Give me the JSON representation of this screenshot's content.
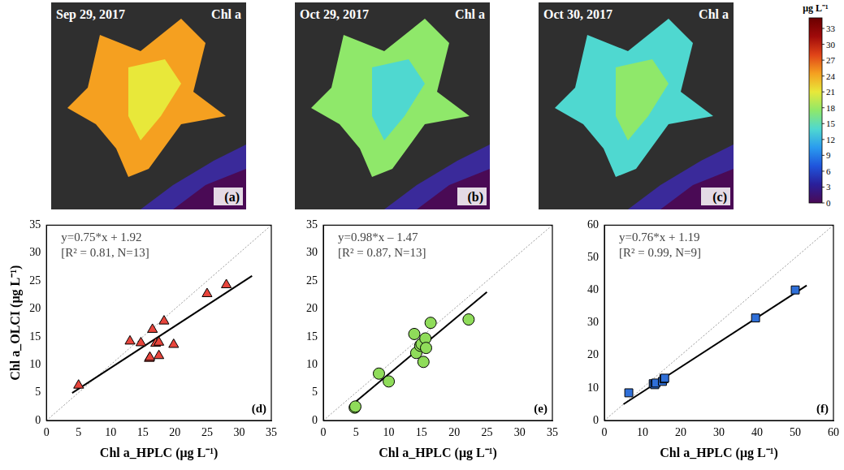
{
  "maps": [
    {
      "date": "Sep 29, 2017",
      "variable": "Chl a",
      "label": "(a)"
    },
    {
      "date": "Oct 29, 2017",
      "variable": "Chl a",
      "label": "(b)"
    },
    {
      "date": "Oct 30, 2017",
      "variable": "Chl a",
      "label": "(c)"
    }
  ],
  "colorbar": {
    "title": "μg L⁻¹",
    "range": [
      0,
      35
    ],
    "ticks": [
      0,
      3,
      6,
      9,
      12,
      15,
      18,
      21,
      24,
      27,
      30,
      33
    ],
    "colors": [
      "#4a0a55",
      "#2a1f9a",
      "#1f55dc",
      "#2a9cef",
      "#4fd8d0",
      "#8fe86a",
      "#e8e83a",
      "#f5a020",
      "#e04418",
      "#a00a0a",
      "#6a0000"
    ]
  },
  "chart_data": [
    {
      "type": "scatter",
      "annotations": [
        "y=0.75*x + 1.92",
        "[R² = 0.81, N=13]"
      ],
      "label": "(d)",
      "x_label": "Chl a_HPLC (μg L⁻¹)",
      "y_label": "Chl a_OLCI (μg L⁻¹)",
      "xlim": [
        0,
        35
      ],
      "xticks": [
        0,
        5,
        10,
        15,
        20,
        25,
        30,
        35
      ],
      "ylim": [
        0,
        35
      ],
      "yticks": [
        0,
        5,
        10,
        15,
        20,
        25,
        30,
        35
      ],
      "grid": false,
      "series": [
        {
          "type": "scatter",
          "color": "#e8453c",
          "marker": "triangle",
          "x": [
            5.0,
            13.0,
            14.7,
            16.0,
            16.1,
            16.5,
            17.0,
            17.5,
            17.5,
            18.3,
            19.8,
            25.0,
            28.0
          ],
          "values": [
            6.3,
            14.2,
            13.9,
            11.1,
            11.3,
            16.3,
            13.8,
            11.6,
            14.0,
            17.8,
            13.6,
            22.7,
            24.3
          ]
        },
        {
          "type": "line",
          "color": "#000000",
          "line_style": "solid",
          "x": [
            4,
            32
          ],
          "values": [
            4.92,
            25.92
          ]
        }
      ]
    },
    {
      "type": "scatter",
      "annotations": [
        "y=0.98*x – 1.47",
        "[R² = 0.87, N=13]"
      ],
      "label": "(e)",
      "x_label": "Chl a_HPLC (μg L⁻¹)",
      "xlim": [
        0,
        35
      ],
      "xticks": [
        0,
        5,
        10,
        15,
        20,
        25,
        30,
        35
      ],
      "ylim": [
        0,
        35
      ],
      "yticks": [
        0,
        5,
        10,
        15,
        20,
        25,
        30,
        35
      ],
      "grid": false,
      "series": [
        {
          "type": "scatter",
          "color": "#8fdc5a",
          "marker": "circle",
          "x": [
            4.8,
            4.9,
            8.5,
            10.0,
            13.9,
            14.2,
            14.8,
            15.0,
            15.3,
            15.6,
            15.7,
            16.4,
            22.2
          ],
          "values": [
            2.3,
            2.5,
            8.4,
            7.0,
            15.5,
            12.1,
            13.4,
            13.7,
            10.5,
            14.7,
            13.0,
            17.5,
            18.1
          ]
        },
        {
          "type": "line",
          "color": "#000000",
          "line_style": "solid",
          "x": [
            4,
            25
          ],
          "values": [
            2.45,
            23.03
          ]
        }
      ]
    },
    {
      "type": "scatter",
      "annotations": [
        "y=0.76*x + 1.19",
        "[R² = 0.99, N=9]"
      ],
      "label": "(f)",
      "x_label": "Chl a_HPLC (μg L⁻¹)",
      "xlim": [
        0,
        60
      ],
      "xticks": [
        0,
        10,
        20,
        30,
        40,
        50,
        60
      ],
      "ylim": [
        0,
        60
      ],
      "yticks": [
        0,
        10,
        20,
        30,
        40,
        50,
        60
      ],
      "grid": false,
      "series": [
        {
          "type": "scatter",
          "color": "#2f6fd8",
          "marker": "square",
          "x": [
            6.4,
            12.8,
            13.2,
            13.5,
            15.2,
            15.6,
            15.8,
            39.6,
            50.0
          ],
          "values": [
            8.5,
            11.3,
            11.0,
            11.5,
            12.0,
            12.8,
            13.0,
            31.5,
            40.1
          ]
        },
        {
          "type": "line",
          "color": "#000000",
          "line_style": "solid",
          "x": [
            5,
            53
          ],
          "values": [
            4.99,
            41.47
          ]
        }
      ]
    }
  ]
}
